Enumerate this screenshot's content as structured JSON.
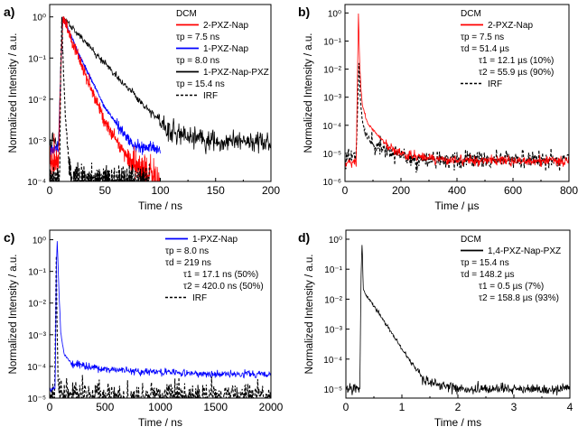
{
  "figure": {
    "panels": [
      "a)",
      "b)",
      "c)",
      "d)"
    ]
  },
  "chart_data": [
    {
      "panel": "a)",
      "type": "line",
      "xscale": "linear",
      "yscale": "log",
      "xlabel": "Time / ns",
      "ylabel": "Normalized Intensity / a.u.",
      "xlim": [
        0,
        200
      ],
      "ylim": [
        0.0001,
        2
      ],
      "xticks": [
        0,
        50,
        100,
        150,
        200
      ],
      "yticks": [
        0.0001,
        0.001,
        0.01,
        0.1,
        1
      ],
      "ytick_labels": [
        "10⁻⁴",
        "10⁻³",
        "10⁻²",
        "10⁻¹",
        "10⁰"
      ],
      "legend_position": "top-right",
      "legend_title": "DCM",
      "legend": [
        {
          "name": "2-PXZ-Nap",
          "note": "τp = 7.5 ns",
          "color": "#ff0000",
          "style": "solid"
        },
        {
          "name": "1-PXZ-Nap",
          "note": "τp = 8.0 ns",
          "color": "#0000ff",
          "style": "solid"
        },
        {
          "name": "1-PXZ-Nap-PXZ",
          "note": "τp = 15.4 ns",
          "color": "#000000",
          "style": "solid"
        },
        {
          "name": "IRF",
          "note": "",
          "color": "#000000",
          "style": "dashed"
        }
      ],
      "series": [
        {
          "name": "1-PXZ-Nap-PXZ",
          "color": "#000000",
          "style": "solid",
          "baseline_log": -3.1,
          "noise_log": 0.22,
          "draw_order": 1,
          "x": [
            0,
            8,
            10,
            12,
            30,
            60,
            90,
            110,
            150,
            200
          ],
          "y": [
            0.0009,
            0.0009,
            0.05,
            1.0,
            0.28,
            0.038,
            0.0052,
            0.0015,
            0.0009,
            0.0009
          ]
        },
        {
          "name": "1-PXZ-Nap",
          "color": "#0000ff",
          "style": "solid",
          "baseline_log": -3.2,
          "noise_log": 0.12,
          "draw_order": 2,
          "x": [
            0,
            8,
            10,
            12,
            25,
            50,
            75,
            100
          ],
          "y": [
            0.0006,
            0.0006,
            0.05,
            1.0,
            0.15,
            0.0062,
            0.00075,
            0.0006
          ]
        },
        {
          "name": "2-PXZ-Nap",
          "color": "#ff0000",
          "style": "solid",
          "baseline_log": -4.0,
          "noise_log": 0.35,
          "draw_order": 3,
          "x": [
            0,
            8,
            10,
            12,
            25,
            50,
            75,
            100
          ],
          "y": [
            0.0003,
            0.0003,
            0.05,
            1.0,
            0.12,
            0.0028,
            0.00025,
            0.0001
          ]
        },
        {
          "name": "IRF",
          "color": "#000000",
          "style": "dashed",
          "baseline_log": -4.0,
          "noise_log": 0.3,
          "draw_order": 4,
          "x": [
            0,
            9,
            10,
            11,
            12,
            14,
            16,
            20,
            90
          ],
          "y": [
            0.0001,
            0.0001,
            0.05,
            1.0,
            0.1,
            0.005,
            0.0008,
            0.0001,
            0.0001
          ]
        }
      ]
    },
    {
      "panel": "b)",
      "type": "line",
      "xscale": "linear",
      "yscale": "log",
      "xlabel": "Time / µs",
      "ylabel": "Normalized Intensity / a.u.",
      "xlim": [
        0,
        800
      ],
      "ylim": [
        1e-06,
        2
      ],
      "xticks": [
        0,
        200,
        400,
        600,
        800
      ],
      "yticks": [
        1e-06,
        1e-05,
        0.0001,
        0.001,
        0.01,
        0.1,
        1
      ],
      "ytick_labels": [
        "10⁻⁶",
        "10⁻⁵",
        "10⁻⁴",
        "10⁻³",
        "10⁻²",
        "10⁻¹",
        "10⁰"
      ],
      "legend_position": "top-right",
      "legend_title": "DCM",
      "legend": [
        {
          "name": "2-PXZ-Nap",
          "note": "τp = 7.5 ns",
          "color": "#ff0000",
          "style": "solid"
        },
        {
          "name": "τd = 51.4 µs",
          "note": "",
          "color": "",
          "style": "text"
        },
        {
          "name": "τ1 = 12.1 µs (10%)",
          "note": "",
          "color": "",
          "style": "text-indent"
        },
        {
          "name": "τ2 = 55.9 µs (90%)",
          "note": "",
          "color": "",
          "style": "text-indent"
        },
        {
          "name": "IRF",
          "note": "",
          "color": "#000000",
          "style": "dashed"
        }
      ],
      "series": [
        {
          "name": "IRF",
          "color": "#000000",
          "style": "dashed",
          "baseline_log": -5.2,
          "noise_log": 0.25,
          "draw_order": 1,
          "x": [
            0,
            40,
            45,
            50,
            55,
            60,
            70,
            100,
            150,
            200,
            250,
            800
          ],
          "y": [
            8e-06,
            8e-06,
            0.0004,
            0.02,
            0.0008,
            0.0002,
            6e-05,
            2e-05,
            1.4e-05,
            8e-06,
            6e-06,
            6e-06
          ]
        },
        {
          "name": "2-PXZ-Nap",
          "color": "#ff0000",
          "style": "solid",
          "baseline_log": -5.25,
          "noise_log": 0.15,
          "draw_order": 2,
          "x": [
            0,
            40,
            45,
            48,
            52,
            56,
            62,
            80,
            120,
            160,
            200,
            300,
            400,
            800
          ],
          "y": [
            5e-06,
            5e-06,
            0.01,
            1.0,
            0.02,
            0.003,
            0.0005,
            0.00012,
            4e-05,
            1.6e-05,
            1e-05,
            6.5e-06,
            5.5e-06,
            5.5e-06
          ]
        }
      ]
    },
    {
      "panel": "c)",
      "type": "line",
      "xscale": "linear",
      "yscale": "log",
      "xlabel": "Time / ns",
      "ylabel": "Normalized Intensity / a.u.",
      "xlim": [
        0,
        2000
      ],
      "ylim": [
        1e-05,
        2
      ],
      "xticks": [
        0,
        500,
        1000,
        1500,
        2000
      ],
      "yticks": [
        1e-05,
        0.0001,
        0.001,
        0.01,
        0.1,
        1
      ],
      "ytick_labels": [
        "10⁻⁵",
        "10⁻⁴",
        "10⁻³",
        "10⁻²",
        "10⁻¹",
        "10⁰"
      ],
      "legend_position": "top-right",
      "legend_title": "",
      "legend": [
        {
          "name": "1-PXZ-Nap",
          "note": "τp = 8.0 ns",
          "color": "#0000ff",
          "style": "solid"
        },
        {
          "name": "τd = 219 ns",
          "note": "",
          "color": "",
          "style": "text"
        },
        {
          "name": "τ1 = 17.1 ns (50%)",
          "note": "",
          "color": "",
          "style": "text-indent"
        },
        {
          "name": "τ2 = 420.0 ns (50%)",
          "note": "",
          "color": "",
          "style": "text-indent"
        },
        {
          "name": "IRF",
          "note": "",
          "color": "#000000",
          "style": "dashed"
        }
      ],
      "series": [
        {
          "name": "IRF",
          "color": "#000000",
          "style": "dashed",
          "baseline_log": -4.9,
          "noise_log": 0.35,
          "draw_order": 1,
          "x": [
            0,
            45,
            55,
            60,
            65,
            75,
            90,
            2000
          ],
          "y": [
            1.2e-05,
            1.2e-05,
            0.01,
            0.4,
            0.005,
            5e-05,
            1.2e-05,
            1.2e-05
          ]
        },
        {
          "name": "1-PXZ-Nap",
          "color": "#0000ff",
          "style": "solid",
          "baseline_log": -4.5,
          "noise_log": 0.1,
          "draw_order": 2,
          "x": [
            0,
            50,
            60,
            68,
            75,
            85,
            100,
            130,
            200,
            500,
            1000,
            1500,
            2000
          ],
          "y": [
            2e-05,
            2e-05,
            0.1,
            1.0,
            0.2,
            0.02,
            0.0012,
            0.00025,
            0.00012,
            8e-05,
            6.5e-05,
            5.8e-05,
            5.5e-05
          ]
        }
      ]
    },
    {
      "panel": "d)",
      "type": "line",
      "xscale": "linear",
      "yscale": "log",
      "xlabel": "Time / ms",
      "ylabel": "Normalized Intensity / a.u.",
      "xlim": [
        0,
        4
      ],
      "ylim": [
        5e-06,
        2
      ],
      "xticks": [
        0,
        1,
        2,
        3,
        4
      ],
      "yticks": [
        1e-05,
        0.0001,
        0.001,
        0.01,
        0.1,
        1
      ],
      "ytick_labels": [
        "10⁻⁵",
        "10⁻⁴",
        "10⁻³",
        "10⁻²",
        "10⁻¹",
        "10⁰"
      ],
      "legend_position": "top-right",
      "legend_title": "DCM",
      "legend": [
        {
          "name": "1,4-PXZ-Nap-PXZ",
          "note": "τp = 15.4 ns",
          "color": "#000000",
          "style": "solid"
        },
        {
          "name": "τd = 148.2 µs",
          "note": "",
          "color": "",
          "style": "text"
        },
        {
          "name": "τ1 = 0.5 µs (7%)",
          "note": "",
          "color": "",
          "style": "text-indent"
        },
        {
          "name": "τ2 = 158.8 µs (93%)",
          "note": "",
          "color": "",
          "style": "text-indent"
        }
      ],
      "series": [
        {
          "name": "1,4-PXZ-Nap-PXZ",
          "color": "#000000",
          "style": "solid",
          "baseline_log": -5.0,
          "noise_log": 0.15,
          "draw_order": 1,
          "x": [
            0,
            0.25,
            0.27,
            0.29,
            0.31,
            0.5,
            0.75,
            1.0,
            1.25,
            1.4,
            2.0,
            3.0,
            4.0
          ],
          "y": [
            1e-05,
            1e-05,
            0.05,
            1.0,
            0.02,
            0.006,
            0.0012,
            0.00022,
            4.5e-05,
            2e-05,
            1e-05,
            1e-05,
            1e-05
          ]
        }
      ]
    }
  ]
}
